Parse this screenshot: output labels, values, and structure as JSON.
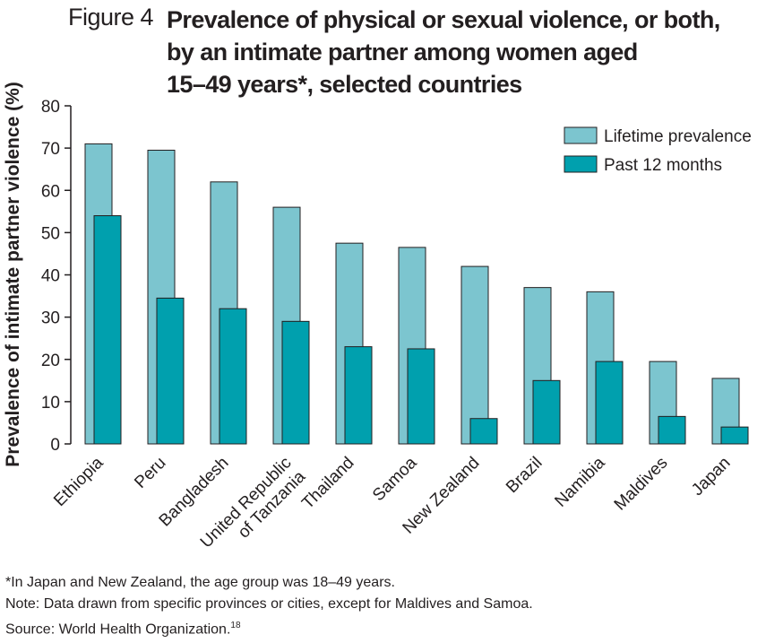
{
  "figure": {
    "label": "Figure 4",
    "title_lines": [
      "Prevalence of physical or sexual violence, or both,",
      "by an intimate partner among women aged",
      "15–49 years*, selected countries"
    ]
  },
  "notes": {
    "footnote": "*In Japan and New Zealand, the age group was 18–49 years.",
    "note": "Note: Data drawn from specific provinces or cities, except for Maldives and Samoa.",
    "source": "Source: World Health Organization.",
    "source_ref": "18"
  },
  "colors": {
    "lifetime": "#7cc5cf",
    "past12": "#00a0ae",
    "bar_stroke": "#231f20"
  },
  "chart_data": {
    "type": "bar",
    "title": "Prevalence of physical or sexual violence, or both, by an intimate partner among women aged 15–49 years*, selected countries",
    "xlabel": "",
    "ylabel": "Prevalence of intimate partner violence (%)",
    "ylim": [
      0,
      80
    ],
    "yticks": [
      0,
      10,
      20,
      30,
      40,
      50,
      60,
      70,
      80
    ],
    "grid": false,
    "legend_position": "top-right",
    "categories": [
      [
        "Ethiopia"
      ],
      [
        "Peru"
      ],
      [
        "Bangladesh"
      ],
      [
        "United Republic",
        "of Tanzania"
      ],
      [
        "Thailand"
      ],
      [
        "Samoa"
      ],
      [
        "New Zealand"
      ],
      [
        "Brazil"
      ],
      [
        "Namibia"
      ],
      [
        "Maldives"
      ],
      [
        "Japan"
      ]
    ],
    "series": [
      {
        "name": "Lifetime prevalence",
        "values": [
          71,
          69.5,
          62,
          56,
          47.5,
          46.5,
          42,
          37,
          36,
          19.5,
          15.5
        ]
      },
      {
        "name": "Past 12 months",
        "values": [
          54,
          34.5,
          32,
          29,
          23,
          22.5,
          6,
          15,
          19.5,
          6.5,
          4
        ]
      }
    ]
  }
}
